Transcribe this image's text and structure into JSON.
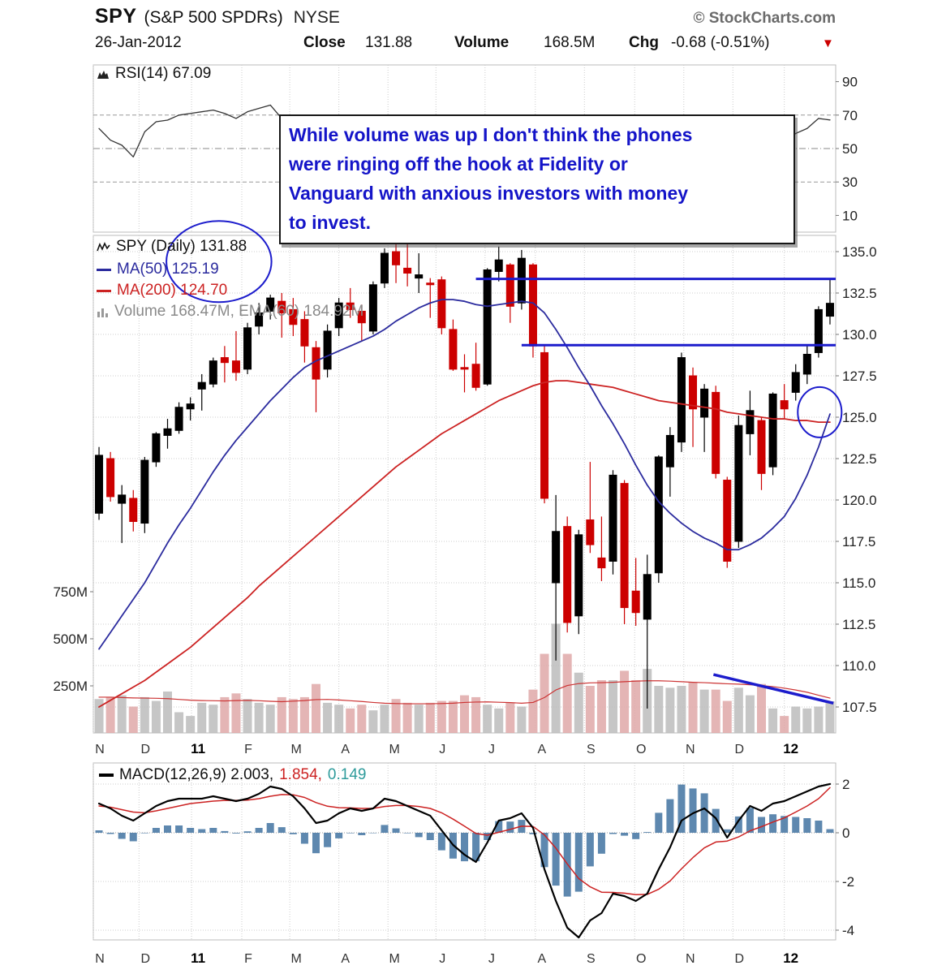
{
  "header": {
    "symbol": "SPY",
    "name": "(S&P 500 SPDRs)",
    "exchange": "NYSE",
    "copyright": "© StockCharts.com",
    "date": "26-Jan-2012",
    "close_label": "Close",
    "close_value": "131.88",
    "volume_label": "Volume",
    "volume_value": "168.5M",
    "chg_label": "Chg",
    "chg_value": "-0.68 (-0.51%)",
    "chg_triangle": "▼"
  },
  "rsi_panel": {
    "label": "RSI(14) 67.09",
    "ticks": [
      {
        "label": "90",
        "value": 90
      },
      {
        "label": "70",
        "value": 70
      },
      {
        "label": "50",
        "value": 50
      },
      {
        "label": "30",
        "value": 30
      },
      {
        "label": "10",
        "value": 10
      }
    ]
  },
  "main_panel": {
    "legend_symbol": "SPY (Daily) 131.88",
    "legend_ma50": "MA(50) 125.19",
    "legend_ma200": "MA(200) 124.70",
    "legend_volume": "Volume 168.47M, EMA(60) 184.92M",
    "price_ticks": [
      {
        "label": "135.0",
        "value": 135.0
      },
      {
        "label": "132.5",
        "value": 132.5
      },
      {
        "label": "130.0",
        "value": 130.0
      },
      {
        "label": "127.5",
        "value": 127.5
      },
      {
        "label": "125.0",
        "value": 125.0
      },
      {
        "label": "122.5",
        "value": 122.5
      },
      {
        "label": "120.0",
        "value": 120.0
      },
      {
        "label": "117.5",
        "value": 117.5
      },
      {
        "label": "115.0",
        "value": 115.0
      },
      {
        "label": "112.5",
        "value": 112.5
      },
      {
        "label": "110.0",
        "value": 110.0
      },
      {
        "label": "107.5",
        "value": 107.5
      }
    ],
    "volume_ticks": [
      {
        "label": "750M",
        "value": 750
      },
      {
        "label": "500M",
        "value": 500
      },
      {
        "label": "250M",
        "value": 250
      }
    ]
  },
  "macd_panel": {
    "label_macd": "MACD(12,26,9) 2.003,",
    "label_signal": "1.854,",
    "label_hist": "0.149",
    "ticks": [
      {
        "label": "2",
        "value": 2
      },
      {
        "label": "0",
        "value": 0
      },
      {
        "label": "-2",
        "value": -2
      },
      {
        "label": "-4",
        "value": -4
      }
    ]
  },
  "annotation": {
    "lines": [
      "While volume was up I don't think the phones",
      "were ringing off the hook at Fidelity or",
      "Vanguard with anxious investors with money",
      "to invest."
    ]
  },
  "x_axis": {
    "months": [
      {
        "label": "N",
        "week": 0,
        "bold": false
      },
      {
        "label": "D",
        "week": 4,
        "bold": false
      },
      {
        "label": "11",
        "week": 8.6,
        "bold": true
      },
      {
        "label": "F",
        "week": 13,
        "bold": false
      },
      {
        "label": "M",
        "week": 17.2,
        "bold": false
      },
      {
        "label": "A",
        "week": 21.5,
        "bold": false
      },
      {
        "label": "M",
        "week": 25.8,
        "bold": false
      },
      {
        "label": "J",
        "week": 30,
        "bold": false
      },
      {
        "label": "J",
        "week": 34.3,
        "bold": false
      },
      {
        "label": "A",
        "week": 38.7,
        "bold": false
      },
      {
        "label": "S",
        "week": 43,
        "bold": false
      },
      {
        "label": "O",
        "week": 47.4,
        "bold": false
      },
      {
        "label": "N",
        "week": 51.7,
        "bold": false
      },
      {
        "label": "D",
        "week": 56,
        "bold": false
      },
      {
        "label": "12",
        "week": 60.5,
        "bold": true
      }
    ]
  },
  "colors": {
    "up_candle": "#000000",
    "down_candle": "#cc0000",
    "ma50": "#2b2b9e",
    "ma200": "#cc2222",
    "volume_up": "#bcbcbc",
    "volume_down": "#dfa8a8",
    "volume_ema": "#cc3333",
    "rsi_line": "#333333",
    "macd_line": "#000000",
    "macd_signal": "#cc2222",
    "macd_hist": "#4d7ba6",
    "annotation_blue": "#1c1ccc",
    "note_text": "#1414c8",
    "chg_triangle": "#cc0000"
  },
  "chart_data": {
    "type": "candlestick",
    "title": "SPY (S&P 500 SPDRs) NYSE — Daily, Nov 2010 to 26-Jan-2012 (weekly approximation of daily bars)",
    "price_ylim": [
      106.0,
      136.0
    ],
    "rsi_ylim": [
      0,
      100
    ],
    "macd_ylim": [
      -4.4,
      2.9
    ],
    "volume_ylim_m": [
      0,
      850
    ],
    "candles": [
      [
        119.2,
        123.2,
        118.8,
        122.7
      ],
      [
        122.5,
        122.9,
        119.9,
        120.2
      ],
      [
        119.8,
        120.9,
        117.4,
        120.3
      ],
      [
        120.1,
        120.6,
        118.1,
        118.7
      ],
      [
        118.6,
        122.6,
        118.0,
        122.4
      ],
      [
        122.3,
        124.1,
        122.0,
        124.0
      ],
      [
        123.9,
        124.9,
        123.1,
        124.3
      ],
      [
        124.2,
        125.9,
        124.0,
        125.6
      ],
      [
        125.5,
        126.2,
        124.8,
        125.8
      ],
      [
        126.7,
        127.6,
        125.4,
        127.1
      ],
      [
        127.0,
        128.6,
        126.8,
        128.4
      ],
      [
        128.6,
        129.3,
        127.1,
        128.3
      ],
      [
        128.4,
        130.2,
        127.2,
        127.7
      ],
      [
        127.9,
        130.7,
        127.6,
        130.4
      ],
      [
        130.5,
        131.9,
        130.0,
        131.3
      ],
      [
        131.4,
        132.4,
        130.9,
        132.2
      ],
      [
        132.0,
        132.5,
        129.8,
        131.3
      ],
      [
        131.5,
        132.2,
        129.9,
        130.6
      ],
      [
        130.9,
        131.4,
        128.3,
        129.3
      ],
      [
        129.2,
        129.6,
        125.3,
        127.3
      ],
      [
        127.9,
        130.6,
        127.4,
        130.2
      ],
      [
        130.4,
        132.2,
        129.9,
        131.9
      ],
      [
        131.9,
        132.8,
        131.0,
        131.5
      ],
      [
        131.4,
        131.8,
        129.6,
        130.7
      ],
      [
        130.2,
        133.2,
        130.0,
        133.0
      ],
      [
        133.1,
        135.2,
        132.8,
        134.9
      ],
      [
        135.0,
        135.7,
        133.1,
        134.2
      ],
      [
        134.0,
        135.5,
        132.9,
        133.7
      ],
      [
        133.4,
        134.9,
        132.5,
        133.6
      ],
      [
        133.1,
        133.4,
        131.0,
        133.0
      ],
      [
        133.3,
        133.5,
        130.0,
        130.4
      ],
      [
        130.3,
        130.9,
        127.8,
        127.9
      ],
      [
        128.0,
        128.8,
        126.5,
        127.9
      ],
      [
        128.2,
        129.5,
        126.6,
        126.8
      ],
      [
        127.0,
        134.0,
        126.9,
        133.9
      ],
      [
        133.8,
        135.3,
        133.2,
        134.5
      ],
      [
        134.2,
        134.3,
        130.7,
        131.7
      ],
      [
        131.9,
        135.1,
        131.5,
        134.6
      ],
      [
        134.2,
        134.3,
        128.6,
        129.3
      ],
      [
        128.9,
        129.4,
        119.8,
        120.1
      ],
      [
        115.0,
        120.3,
        110.3,
        118.1
      ],
      [
        118.4,
        119.0,
        112.0,
        112.6
      ],
      [
        113.0,
        118.2,
        111.9,
        117.9
      ],
      [
        118.8,
        122.3,
        116.8,
        117.3
      ],
      [
        116.5,
        119.0,
        115.1,
        115.9
      ],
      [
        116.3,
        121.8,
        115.5,
        121.5
      ],
      [
        121.0,
        121.2,
        112.5,
        113.5
      ],
      [
        114.5,
        116.5,
        112.4,
        113.2
      ],
      [
        112.8,
        116.7,
        107.4,
        115.5
      ],
      [
        115.6,
        122.7,
        115.0,
        122.6
      ],
      [
        122.0,
        124.4,
        120.2,
        123.9
      ],
      [
        123.5,
        128.9,
        122.9,
        128.6
      ],
      [
        127.5,
        128.0,
        123.2,
        125.5
      ],
      [
        125.0,
        127.0,
        122.9,
        126.7
      ],
      [
        126.5,
        126.9,
        121.3,
        121.6
      ],
      [
        121.2,
        121.4,
        115.9,
        116.3
      ],
      [
        117.5,
        125.1,
        117.1,
        124.5
      ],
      [
        124.0,
        126.6,
        122.7,
        125.4
      ],
      [
        124.8,
        125.0,
        120.6,
        121.6
      ],
      [
        122.0,
        126.5,
        121.5,
        126.4
      ],
      [
        126.0,
        127.0,
        124.9,
        125.5
      ],
      [
        126.5,
        128.2,
        126.0,
        127.7
      ],
      [
        127.6,
        129.3,
        127.0,
        128.8
      ],
      [
        128.9,
        131.7,
        128.6,
        131.5
      ],
      [
        131.1,
        133.4,
        130.6,
        131.88
      ]
    ],
    "ma50": [
      111.0,
      112.0,
      113.0,
      114.0,
      115.0,
      116.2,
      117.4,
      118.5,
      119.5,
      120.6,
      121.7,
      122.7,
      123.6,
      124.4,
      125.2,
      126.0,
      126.7,
      127.4,
      128.0,
      128.4,
      128.7,
      129.0,
      129.3,
      129.6,
      129.9,
      130.3,
      130.8,
      131.2,
      131.6,
      131.9,
      132.1,
      132.1,
      132.0,
      131.8,
      131.7,
      131.8,
      131.9,
      132.0,
      131.9,
      131.3,
      130.3,
      129.2,
      128.0,
      126.9,
      125.7,
      124.6,
      123.4,
      122.1,
      120.9,
      119.9,
      119.2,
      118.6,
      118.1,
      117.7,
      117.4,
      117.0,
      117.0,
      117.3,
      117.7,
      118.3,
      119.0,
      120.1,
      121.5,
      123.2,
      125.19
    ],
    "ma200": [
      107.5,
      107.9,
      108.3,
      108.7,
      109.1,
      109.6,
      110.1,
      110.6,
      111.1,
      111.7,
      112.3,
      112.9,
      113.5,
      114.1,
      114.8,
      115.4,
      116.0,
      116.6,
      117.2,
      117.8,
      118.4,
      119.0,
      119.6,
      120.2,
      120.8,
      121.4,
      122.0,
      122.5,
      123.0,
      123.5,
      124.0,
      124.4,
      124.8,
      125.2,
      125.6,
      126.0,
      126.3,
      126.6,
      126.9,
      127.1,
      127.2,
      127.2,
      127.1,
      127.0,
      126.9,
      126.8,
      126.6,
      126.4,
      126.2,
      126.0,
      125.9,
      125.8,
      125.7,
      125.6,
      125.5,
      125.3,
      125.2,
      125.1,
      125.0,
      124.9,
      124.9,
      124.8,
      124.8,
      124.7,
      124.7
    ],
    "volume_m": [
      180,
      190,
      200,
      140,
      190,
      170,
      220,
      110,
      90,
      160,
      150,
      190,
      210,
      180,
      160,
      150,
      190,
      180,
      190,
      260,
      160,
      150,
      130,
      150,
      120,
      150,
      180,
      160,
      150,
      160,
      170,
      170,
      200,
      190,
      150,
      130,
      160,
      140,
      230,
      420,
      580,
      420,
      320,
      250,
      280,
      280,
      330,
      280,
      340,
      250,
      240,
      250,
      270,
      230,
      230,
      170,
      240,
      200,
      260,
      130,
      90,
      140,
      130,
      140,
      168
    ],
    "vol_ema60_m": [
      190,
      190,
      188,
      186,
      185,
      184,
      182,
      178,
      174,
      172,
      171,
      170,
      172,
      173,
      171,
      168,
      166,
      169,
      172,
      177,
      178,
      175,
      171,
      167,
      162,
      158,
      156,
      155,
      155,
      155,
      156,
      158,
      162,
      164,
      165,
      163,
      161,
      158,
      162,
      188,
      228,
      252,
      262,
      266,
      267,
      269,
      272,
      275,
      277,
      277,
      275,
      272,
      269,
      267,
      264,
      261,
      259,
      256,
      252,
      246,
      238,
      228,
      216,
      200,
      185
    ],
    "rsi14": [
      62,
      55,
      52,
      45,
      60,
      66,
      67,
      70,
      71,
      72,
      73,
      71,
      68,
      72,
      74,
      76,
      68,
      64,
      55,
      45,
      56,
      62,
      60,
      55,
      62,
      70,
      62,
      58,
      57,
      54,
      45,
      38,
      38,
      35,
      58,
      62,
      52,
      60,
      44,
      26,
      28,
      25,
      38,
      37,
      33,
      47,
      32,
      32,
      38,
      53,
      56,
      65,
      57,
      60,
      47,
      36,
      53,
      55,
      46,
      55,
      54,
      59,
      62,
      68,
      67.09
    ],
    "macd": [
      1.2,
      1.0,
      0.7,
      0.5,
      0.8,
      1.1,
      1.3,
      1.4,
      1.4,
      1.4,
      1.5,
      1.4,
      1.3,
      1.4,
      1.6,
      1.9,
      1.8,
      1.5,
      1.0,
      0.4,
      0.5,
      0.8,
      1.0,
      0.9,
      1.0,
      1.4,
      1.3,
      1.1,
      0.9,
      0.7,
      0.1,
      -0.5,
      -0.9,
      -1.2,
      -0.4,
      0.5,
      0.6,
      0.8,
      0.2,
      -1.5,
      -2.8,
      -3.9,
      -4.3,
      -3.6,
      -3.3,
      -2.5,
      -2.6,
      -2.8,
      -2.5,
      -1.5,
      -0.6,
      0.5,
      0.8,
      1.0,
      0.6,
      -0.2,
      0.5,
      1.1,
      0.9,
      1.2,
      1.3,
      1.5,
      1.7,
      1.9,
      2.003
    ],
    "macd_signal": [
      1.1,
      1.05,
      0.95,
      0.85,
      0.82,
      0.9,
      1.0,
      1.1,
      1.2,
      1.25,
      1.3,
      1.33,
      1.33,
      1.34,
      1.4,
      1.5,
      1.57,
      1.56,
      1.45,
      1.24,
      1.09,
      1.03,
      1.02,
      1.0,
      1.0,
      1.08,
      1.12,
      1.12,
      1.08,
      1.0,
      0.82,
      0.56,
      0.27,
      -0.03,
      -0.1,
      0.02,
      0.14,
      0.27,
      0.26,
      -0.09,
      -0.63,
      -1.28,
      -1.88,
      -2.22,
      -2.44,
      -2.45,
      -2.48,
      -2.54,
      -2.53,
      -2.32,
      -1.98,
      -1.48,
      -1.02,
      -0.62,
      -0.38,
      -0.34,
      -0.17,
      0.08,
      0.25,
      0.44,
      0.61,
      0.85,
      1.1,
      1.4,
      1.854
    ],
    "overlays": {
      "resistance_lines": [
        {
          "price": 133.35,
          "week_from": 33.5,
          "week_to": 65
        },
        {
          "price": 129.35,
          "week_from": 37.5,
          "week_to": 65
        }
      ],
      "volume_trendline": {
        "week_from": 54.3,
        "vol_from_m": 310,
        "week_to": 64.8,
        "vol_to_m": 158
      },
      "ellipses": [
        {
          "week": 10.5,
          "price": 134.4,
          "rx_weeks": 4.6,
          "ry_price": 2.45
        },
        {
          "week": 63.1,
          "price": 125.3,
          "rx_weeks": 1.92,
          "ry_price": 1.52
        }
      ]
    }
  }
}
